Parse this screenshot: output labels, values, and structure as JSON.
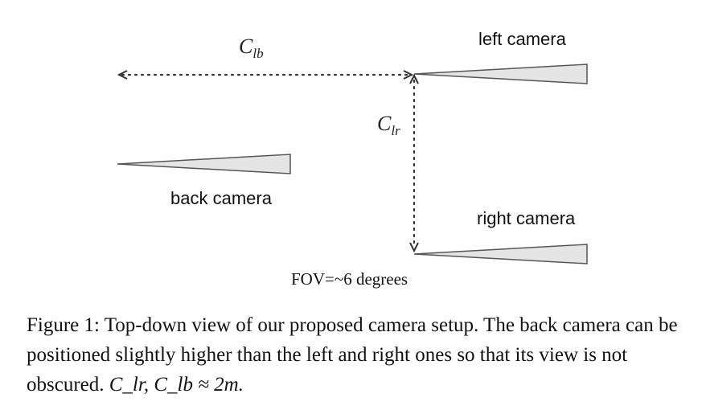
{
  "figure": {
    "labels": {
      "left_camera": "left camera",
      "back_camera": "back camera",
      "right_camera": "right camera",
      "fov": "FOV=~6 degrees",
      "c_lb_main": "C",
      "c_lb_sub": "lb",
      "c_lr_main": "C",
      "c_lr_sub": "lr"
    }
  },
  "caption": {
    "prefix": "Figure 1:",
    "text": "Top-down view of our proposed camera setup. The back camera can be positioned slightly higher than the left and right ones so that its view is not obscured.",
    "math": "C_lr, C_lb ≈ 2m."
  }
}
